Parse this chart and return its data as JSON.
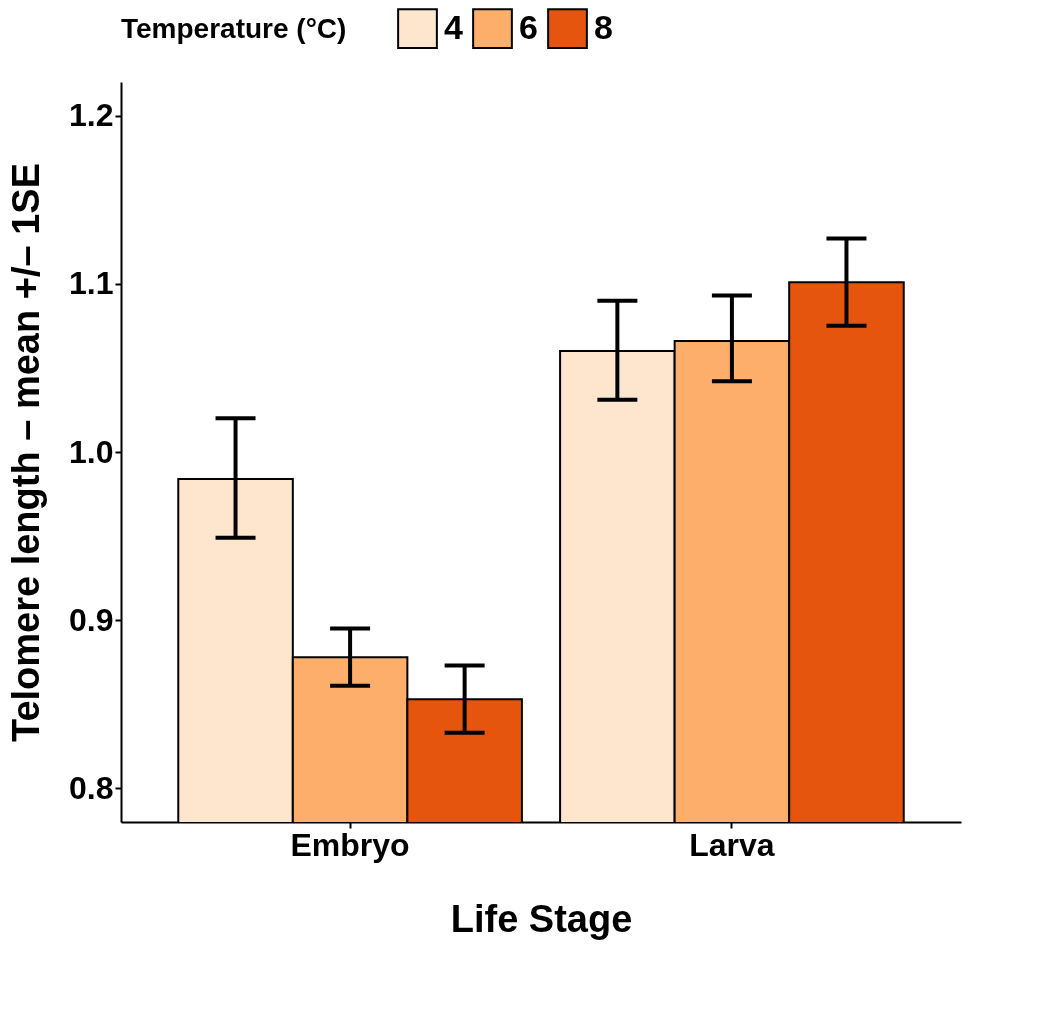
{
  "chart_data": {
    "type": "bar",
    "xlabel": "Life Stage",
    "ylabel": "Telomere length – mean +/– 1SE",
    "legend_title": "Temperature (°C)",
    "categories": [
      "Embryo",
      "Larva"
    ],
    "series": [
      {
        "name": "4",
        "color": "#fee6ce",
        "values": [
          0.984,
          1.06
        ],
        "errors": [
          [
            0.949,
            1.02
          ],
          [
            1.031,
            1.09
          ]
        ]
      },
      {
        "name": "6",
        "color": "#fdae6b",
        "values": [
          0.878,
          1.066
        ],
        "errors": [
          [
            0.861,
            0.895
          ],
          [
            1.042,
            1.093
          ]
        ]
      },
      {
        "name": "8",
        "color": "#e6550d",
        "values": [
          0.853,
          1.101
        ],
        "errors": [
          [
            0.833,
            0.873
          ],
          [
            1.075,
            1.127
          ]
        ]
      }
    ],
    "ylim": [
      0.78,
      1.22
    ],
    "yticks": [
      0.8,
      0.9,
      {
        "value": 1,
        "label": "1.0"
      },
      1.1,
      1.2
    ],
    "grid": false,
    "legend": "top"
  }
}
